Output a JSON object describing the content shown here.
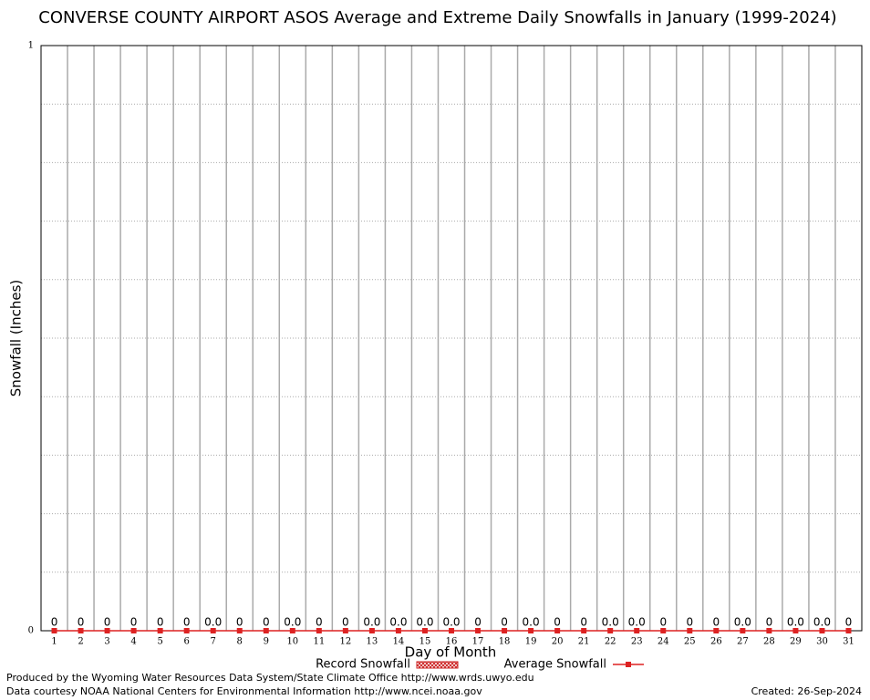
{
  "chart_data": {
    "type": "bar_line",
    "title": "CONVERSE COUNTY AIRPORT ASOS Average and Extreme Daily Snowfalls in January (1999-2024)",
    "x_label": "Day of Month",
    "y_label": "Snowfall (Inches)",
    "categories": [
      "1",
      "2",
      "3",
      "4",
      "5",
      "6",
      "7",
      "8",
      "9",
      "10",
      "11",
      "12",
      "13",
      "14",
      "15",
      "16",
      "17",
      "18",
      "19",
      "20",
      "21",
      "22",
      "23",
      "24",
      "25",
      "26",
      "27",
      "28",
      "29",
      "30",
      "31"
    ],
    "series": [
      {
        "name": "Record Snowfall",
        "color": "#cc2222",
        "values": [
          0,
          0,
          0,
          0,
          0,
          0,
          0,
          0,
          0,
          0,
          0,
          0,
          0,
          0,
          0,
          0,
          0,
          0,
          0,
          0,
          0,
          0,
          0,
          0,
          0,
          0,
          0,
          0,
          0,
          0,
          0
        ],
        "value_labels": [
          "0",
          "0",
          "0",
          "0",
          "0",
          "0",
          "0.0",
          "0",
          "0",
          "0.0",
          "0",
          "0",
          "0.0",
          "0.0",
          "0.0",
          "0.0",
          "0",
          "0",
          "0.0",
          "0",
          "0",
          "0.0",
          "0.0",
          "0",
          "0",
          "0",
          "0.0",
          "0",
          "0.0",
          "0.0",
          "0"
        ]
      },
      {
        "name": "Average Snowfall",
        "color": "#dd2222",
        "values": [
          0,
          0,
          0,
          0,
          0,
          0,
          0,
          0,
          0,
          0,
          0,
          0,
          0,
          0,
          0,
          0,
          0,
          0,
          0,
          0,
          0,
          0,
          0,
          0,
          0,
          0,
          0,
          0,
          0,
          0,
          0
        ]
      }
    ],
    "ylim": [
      0,
      1
    ],
    "yticks": [
      0,
      1
    ],
    "grid": true,
    "footer": {
      "produced": "Produced by the Wyoming Water Resources Data System/State Climate Office http://www.wrds.uwyo.edu",
      "courtesy": "Data courtesy NOAA National Centers for Environmental Information http://www.ncei.noaa.gov",
      "created": "Created:  26-Sep-2024"
    }
  }
}
